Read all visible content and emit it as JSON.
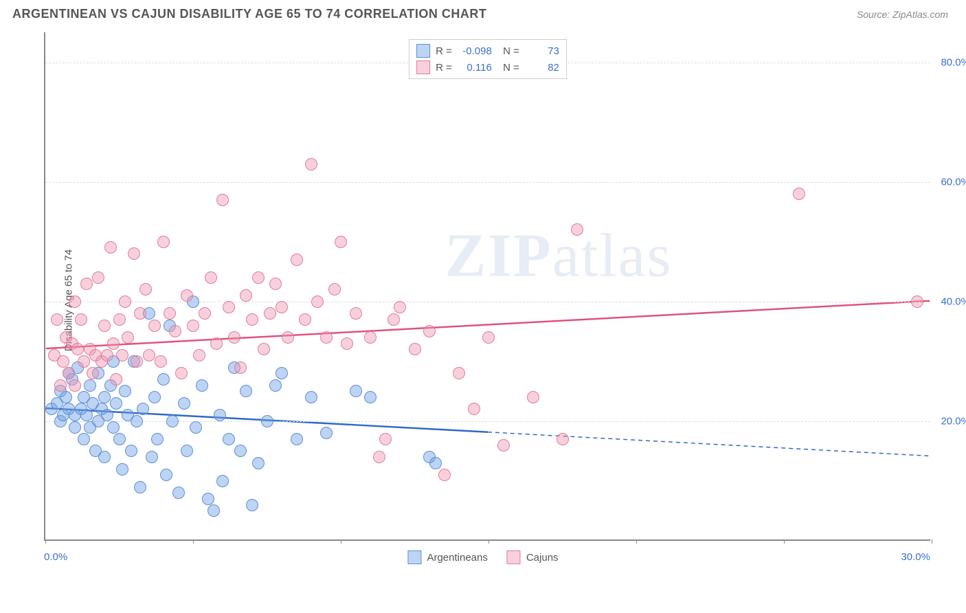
{
  "title": "ARGENTINEAN VS CAJUN DISABILITY AGE 65 TO 74 CORRELATION CHART",
  "source": "Source: ZipAtlas.com",
  "ylabel": "Disability Age 65 to 74",
  "watermark_bold": "ZIP",
  "watermark_rest": "atlas",
  "chart": {
    "type": "scatter",
    "xlim": [
      0,
      30
    ],
    "ylim": [
      0,
      85
    ],
    "yticks": [
      20,
      40,
      60,
      80
    ],
    "ytick_labels": [
      "20.0%",
      "40.0%",
      "60.0%",
      "80.0%"
    ],
    "xtick_left": "0.0%",
    "xtick_right": "30.0%",
    "xtick_marks": [
      0,
      5,
      10,
      15,
      20,
      25,
      30
    ],
    "background_color": "#ffffff",
    "grid_color": "#dddddd",
    "point_radius": 9,
    "series": [
      {
        "name": "Argentineans",
        "fill": "rgba(110,160,230,0.45)",
        "stroke": "#5b8fd6",
        "R": "-0.098",
        "N": "73",
        "trend": {
          "x1": 0,
          "y1": 22,
          "x2": 30,
          "y2": 14,
          "solid_until_x": 15,
          "color": "#2f69c9",
          "width": 2.5
        },
        "points": [
          [
            0.2,
            22
          ],
          [
            0.4,
            23
          ],
          [
            0.5,
            25
          ],
          [
            0.5,
            20
          ],
          [
            0.6,
            21
          ],
          [
            0.7,
            24
          ],
          [
            0.8,
            22
          ],
          [
            0.8,
            28
          ],
          [
            0.9,
            27
          ],
          [
            1.0,
            21
          ],
          [
            1.0,
            19
          ],
          [
            1.1,
            29
          ],
          [
            1.2,
            22
          ],
          [
            1.3,
            24
          ],
          [
            1.3,
            17
          ],
          [
            1.4,
            21
          ],
          [
            1.5,
            26
          ],
          [
            1.5,
            19
          ],
          [
            1.6,
            23
          ],
          [
            1.7,
            15
          ],
          [
            1.8,
            20
          ],
          [
            1.8,
            28
          ],
          [
            1.9,
            22
          ],
          [
            2.0,
            24
          ],
          [
            2.0,
            14
          ],
          [
            2.1,
            21
          ],
          [
            2.2,
            26
          ],
          [
            2.3,
            19
          ],
          [
            2.3,
            30
          ],
          [
            2.4,
            23
          ],
          [
            2.5,
            17
          ],
          [
            2.6,
            12
          ],
          [
            2.7,
            25
          ],
          [
            2.8,
            21
          ],
          [
            2.9,
            15
          ],
          [
            3.0,
            30
          ],
          [
            3.1,
            20
          ],
          [
            3.2,
            9
          ],
          [
            3.3,
            22
          ],
          [
            3.5,
            38
          ],
          [
            3.6,
            14
          ],
          [
            3.7,
            24
          ],
          [
            3.8,
            17
          ],
          [
            4.0,
            27
          ],
          [
            4.1,
            11
          ],
          [
            4.2,
            36
          ],
          [
            4.3,
            20
          ],
          [
            4.5,
            8
          ],
          [
            4.7,
            23
          ],
          [
            4.8,
            15
          ],
          [
            5.0,
            40
          ],
          [
            5.1,
            19
          ],
          [
            5.3,
            26
          ],
          [
            5.5,
            7
          ],
          [
            5.7,
            5
          ],
          [
            5.9,
            21
          ],
          [
            6.0,
            10
          ],
          [
            6.2,
            17
          ],
          [
            6.4,
            29
          ],
          [
            6.6,
            15
          ],
          [
            6.8,
            25
          ],
          [
            7.0,
            6
          ],
          [
            7.2,
            13
          ],
          [
            7.5,
            20
          ],
          [
            7.8,
            26
          ],
          [
            8.0,
            28
          ],
          [
            8.5,
            17
          ],
          [
            9.0,
            24
          ],
          [
            9.5,
            18
          ],
          [
            10.5,
            25
          ],
          [
            11.0,
            24
          ],
          [
            13.0,
            14
          ],
          [
            13.2,
            13
          ]
        ]
      },
      {
        "name": "Cajuns",
        "fill": "rgba(240,150,175,0.45)",
        "stroke": "#e07c9a",
        "R": "0.116",
        "N": "82",
        "trend": {
          "x1": 0,
          "y1": 32,
          "x2": 30,
          "y2": 40,
          "solid_until_x": 30,
          "color": "#e0527d",
          "width": 2.5
        },
        "points": [
          [
            0.3,
            31
          ],
          [
            0.4,
            37
          ],
          [
            0.5,
            26
          ],
          [
            0.6,
            30
          ],
          [
            0.7,
            34
          ],
          [
            0.8,
            28
          ],
          [
            0.9,
            33
          ],
          [
            1.0,
            40
          ],
          [
            1.0,
            26
          ],
          [
            1.1,
            32
          ],
          [
            1.2,
            37
          ],
          [
            1.3,
            30
          ],
          [
            1.4,
            43
          ],
          [
            1.5,
            32
          ],
          [
            1.6,
            28
          ],
          [
            1.7,
            31
          ],
          [
            1.8,
            44
          ],
          [
            1.9,
            30
          ],
          [
            2.0,
            36
          ],
          [
            2.1,
            31
          ],
          [
            2.2,
            49
          ],
          [
            2.3,
            33
          ],
          [
            2.4,
            27
          ],
          [
            2.5,
            37
          ],
          [
            2.6,
            31
          ],
          [
            2.7,
            40
          ],
          [
            2.8,
            34
          ],
          [
            3.0,
            48
          ],
          [
            3.1,
            30
          ],
          [
            3.2,
            38
          ],
          [
            3.4,
            42
          ],
          [
            3.5,
            31
          ],
          [
            3.7,
            36
          ],
          [
            3.9,
            30
          ],
          [
            4.0,
            50
          ],
          [
            4.2,
            38
          ],
          [
            4.4,
            35
          ],
          [
            4.6,
            28
          ],
          [
            4.8,
            41
          ],
          [
            5.0,
            36
          ],
          [
            5.2,
            31
          ],
          [
            5.4,
            38
          ],
          [
            5.6,
            44
          ],
          [
            5.8,
            33
          ],
          [
            6.0,
            57
          ],
          [
            6.2,
            39
          ],
          [
            6.4,
            34
          ],
          [
            6.6,
            29
          ],
          [
            6.8,
            41
          ],
          [
            7.0,
            37
          ],
          [
            7.2,
            44
          ],
          [
            7.4,
            32
          ],
          [
            7.6,
            38
          ],
          [
            7.8,
            43
          ],
          [
            8.0,
            39
          ],
          [
            8.2,
            34
          ],
          [
            8.5,
            47
          ],
          [
            8.8,
            37
          ],
          [
            9.0,
            63
          ],
          [
            9.2,
            40
          ],
          [
            9.5,
            34
          ],
          [
            9.8,
            42
          ],
          [
            10.0,
            50
          ],
          [
            10.2,
            33
          ],
          [
            10.5,
            38
          ],
          [
            11.0,
            34
          ],
          [
            11.3,
            14
          ],
          [
            11.5,
            17
          ],
          [
            11.8,
            37
          ],
          [
            12.0,
            39
          ],
          [
            12.5,
            32
          ],
          [
            13.0,
            35
          ],
          [
            13.5,
            11
          ],
          [
            14.0,
            28
          ],
          [
            14.5,
            22
          ],
          [
            15.0,
            34
          ],
          [
            15.5,
            16
          ],
          [
            16.5,
            24
          ],
          [
            17.5,
            17
          ],
          [
            18.0,
            52
          ],
          [
            25.5,
            58
          ],
          [
            29.5,
            40
          ]
        ]
      }
    ]
  },
  "legend_bottom": [
    {
      "label": "Argentineans",
      "fill": "rgba(110,160,230,0.45)",
      "stroke": "#5b8fd6"
    },
    {
      "label": "Cajuns",
      "fill": "rgba(240,150,175,0.45)",
      "stroke": "#e07c9a"
    }
  ]
}
